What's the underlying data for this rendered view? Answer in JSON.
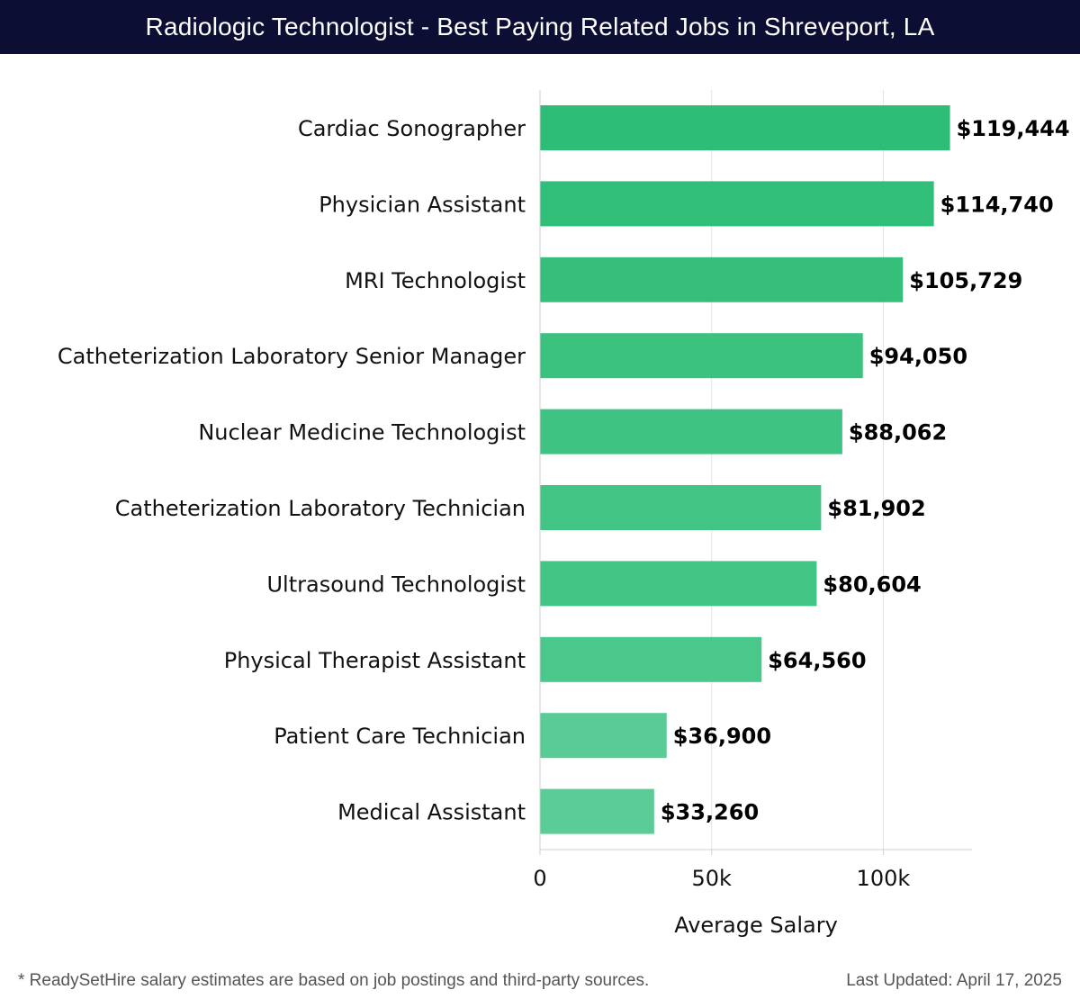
{
  "title": "Radiologic Technologist - Best Paying Related Jobs in Shreveport, LA",
  "footer": {
    "note": "* ReadySetHire salary estimates are based on job postings and third-party sources.",
    "updated": "Last Updated: April 17, 2025"
  },
  "colors": {
    "title_bg": "#0d0e33",
    "bar_dark": "#2ebd76",
    "bar_light": "#5ccd97"
  },
  "chart_data": {
    "type": "bar",
    "orientation": "horizontal",
    "categories": [
      "Cardiac Sonographer",
      "Physician Assistant",
      "MRI Technologist",
      "Catheterization Laboratory Senior Manager",
      "Nuclear Medicine Technologist",
      "Catheterization Laboratory Technician",
      "Ultrasound Technologist",
      "Physical Therapist Assistant",
      "Patient Care Technician",
      "Medical Assistant"
    ],
    "values": [
      119444,
      114740,
      105729,
      94050,
      88062,
      81902,
      80604,
      64560,
      36900,
      33260
    ],
    "value_labels": [
      "$119,444",
      "$114,740",
      "$105,729",
      "$94,050",
      "$88,062",
      "$81,902",
      "$80,604",
      "$64,560",
      "$36,900",
      "$33,260"
    ],
    "xlabel": "Average Salary",
    "ylabel": "",
    "xlim": [
      0,
      125847
    ],
    "xticks": [
      0,
      50000,
      100000
    ],
    "xtick_labels": [
      "0",
      "50k",
      "100k"
    ],
    "grid": true
  }
}
